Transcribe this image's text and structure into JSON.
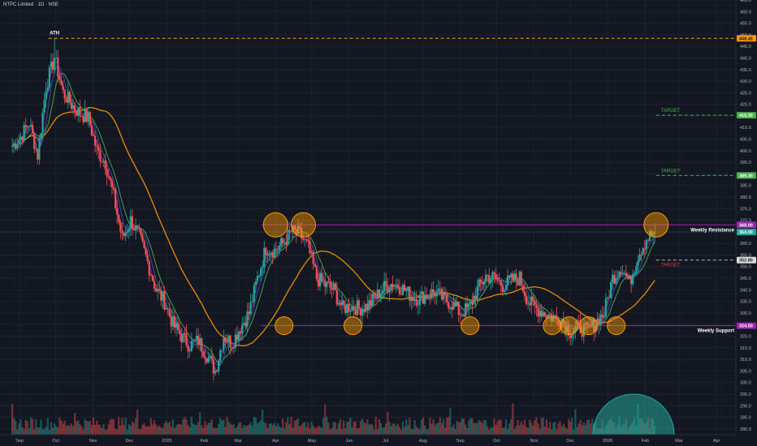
{
  "header": {
    "symbol_title": "NTPC Limited · 1D · NSE"
  },
  "chart_data": {
    "type": "candlestick",
    "y_axis": {
      "position": "right",
      "min": 277.5,
      "max": 465,
      "ticks": [
        280,
        285,
        290,
        295,
        300,
        305,
        310,
        315,
        320,
        325,
        330,
        335,
        340,
        345,
        350,
        355,
        360,
        365,
        370,
        375,
        380,
        385,
        390,
        395,
        400,
        405,
        410,
        415,
        420,
        425,
        430,
        435,
        440,
        445,
        450,
        455,
        460,
        465
      ]
    },
    "x_axis": {
      "ticks": [
        "Sep",
        "Oct",
        "Nov",
        "Dec",
        "2025",
        "Feb",
        "Mar",
        "Apr",
        "May",
        "Jun",
        "Jul",
        "Aug",
        "Sep",
        "Oct",
        "Nov",
        "Dec",
        "2026",
        "Feb",
        "Mar",
        "Apr"
      ]
    },
    "price_labels": [
      {
        "value": 448.45,
        "text": "448.45",
        "color": "#ff9800",
        "text_color": "#131722"
      },
      {
        "value": 415.3,
        "text": "415.30",
        "color": "#4caf50",
        "text_color": "#ffffff"
      },
      {
        "value": 389.3,
        "text": "389.30",
        "color": "#4caf50",
        "text_color": "#ffffff"
      },
      {
        "value": 368.0,
        "text": "368.00",
        "color": "#9c27b0",
        "text_color": "#ffffff"
      },
      {
        "value": 364.9,
        "text": "364.90",
        "color": "#26a69a",
        "text_color": "#ffffff"
      },
      {
        "value": 352.8,
        "text": "352.80",
        "color": "#dcdcdc",
        "text_color": "#131722"
      },
      {
        "value": 324.5,
        "text": "324.50",
        "color": "#9c27b0",
        "text_color": "#ffffff"
      }
    ],
    "annotations": [
      {
        "id": "ath",
        "text": "ATH",
        "color": "#ffffff"
      },
      {
        "id": "target1",
        "text": "TARGET",
        "color": "#4caf50"
      },
      {
        "id": "target2",
        "text": "TARGET",
        "color": "#4caf50"
      },
      {
        "id": "target3",
        "text": "TARGET",
        "color": "#f23645"
      },
      {
        "id": "weekly_resistance",
        "text": "Weekly Resistance",
        "color": "#ffffff"
      },
      {
        "id": "weekly_support",
        "text": "Weekly Support",
        "color": "#ffffff"
      }
    ],
    "levels": {
      "ath": 448.45,
      "weekly_resistance": 368.0,
      "weekly_support": 324.5,
      "target_upper": 415.3,
      "target_middle": 389.3,
      "target_lower": 352.8
    },
    "close_series": [
      {
        "d": "2024-08-26",
        "c": 402
      },
      {
        "d": "2024-09-02",
        "c": 406
      },
      {
        "d": "2024-09-09",
        "c": 412
      },
      {
        "d": "2024-09-16",
        "c": 398
      },
      {
        "d": "2024-09-23",
        "c": 428
      },
      {
        "d": "2024-09-30",
        "c": 440
      },
      {
        "d": "2024-10-07",
        "c": 425
      },
      {
        "d": "2024-10-14",
        "c": 420
      },
      {
        "d": "2024-10-21",
        "c": 416
      },
      {
        "d": "2024-10-28",
        "c": 414
      },
      {
        "d": "2024-11-04",
        "c": 400
      },
      {
        "d": "2024-11-11",
        "c": 395
      },
      {
        "d": "2024-11-18",
        "c": 380
      },
      {
        "d": "2024-11-25",
        "c": 362
      },
      {
        "d": "2024-12-02",
        "c": 370
      },
      {
        "d": "2024-12-09",
        "c": 363
      },
      {
        "d": "2024-12-16",
        "c": 352
      },
      {
        "d": "2024-12-23",
        "c": 340
      },
      {
        "d": "2024-12-30",
        "c": 335
      },
      {
        "d": "2025-01-06",
        "c": 325
      },
      {
        "d": "2025-01-13",
        "c": 320
      },
      {
        "d": "2025-01-20",
        "c": 316
      },
      {
        "d": "2025-01-27",
        "c": 318
      },
      {
        "d": "2025-02-03",
        "c": 312
      },
      {
        "d": "2025-02-10",
        "c": 305
      },
      {
        "d": "2025-02-17",
        "c": 320
      },
      {
        "d": "2025-02-24",
        "c": 317
      },
      {
        "d": "2025-03-03",
        "c": 324
      },
      {
        "d": "2025-03-10",
        "c": 330
      },
      {
        "d": "2025-03-17",
        "c": 345
      },
      {
        "d": "2025-03-24",
        "c": 358
      },
      {
        "d": "2025-03-31",
        "c": 357
      },
      {
        "d": "2025-04-07",
        "c": 360
      },
      {
        "d": "2025-04-14",
        "c": 365
      },
      {
        "d": "2025-04-21",
        "c": 364
      },
      {
        "d": "2025-04-28",
        "c": 358
      },
      {
        "d": "2025-05-05",
        "c": 345
      },
      {
        "d": "2025-05-12",
        "c": 342
      },
      {
        "d": "2025-05-19",
        "c": 340
      },
      {
        "d": "2025-05-26",
        "c": 332
      },
      {
        "d": "2025-06-02",
        "c": 333
      },
      {
        "d": "2025-06-09",
        "c": 332
      },
      {
        "d": "2025-06-16",
        "c": 333
      },
      {
        "d": "2025-06-23",
        "c": 337
      },
      {
        "d": "2025-06-30",
        "c": 341
      },
      {
        "d": "2025-07-07",
        "c": 343
      },
      {
        "d": "2025-07-14",
        "c": 341
      },
      {
        "d": "2025-07-21",
        "c": 338
      },
      {
        "d": "2025-07-28",
        "c": 336
      },
      {
        "d": "2025-08-04",
        "c": 338
      },
      {
        "d": "2025-08-11",
        "c": 339
      },
      {
        "d": "2025-08-18",
        "c": 336
      },
      {
        "d": "2025-08-25",
        "c": 334
      },
      {
        "d": "2025-09-01",
        "c": 330
      },
      {
        "d": "2025-09-08",
        "c": 332
      },
      {
        "d": "2025-09-15",
        "c": 340
      },
      {
        "d": "2025-09-22",
        "c": 346
      },
      {
        "d": "2025-09-29",
        "c": 345
      },
      {
        "d": "2025-10-06",
        "c": 342
      },
      {
        "d": "2025-10-13",
        "c": 344
      },
      {
        "d": "2025-10-20",
        "c": 345
      },
      {
        "d": "2025-10-27",
        "c": 335
      },
      {
        "d": "2025-11-03",
        "c": 332
      },
      {
        "d": "2025-11-10",
        "c": 330
      },
      {
        "d": "2025-11-17",
        "c": 328
      },
      {
        "d": "2025-11-24",
        "c": 327
      },
      {
        "d": "2025-12-01",
        "c": 322
      },
      {
        "d": "2025-12-08",
        "c": 324
      },
      {
        "d": "2025-12-15",
        "c": 322
      },
      {
        "d": "2025-12-22",
        "c": 326
      },
      {
        "d": "2025-12-29",
        "c": 330
      },
      {
        "d": "2026-01-05",
        "c": 345
      },
      {
        "d": "2026-01-12",
        "c": 350
      },
      {
        "d": "2026-01-19",
        "c": 343
      },
      {
        "d": "2026-01-26",
        "c": 355
      },
      {
        "d": "2026-02-02",
        "c": 362
      },
      {
        "d": "2026-02-09",
        "c": 364.9
      }
    ],
    "moving_averages": [
      {
        "name": "",
        "color": "#ff9800",
        "window": 40
      },
      {
        "name": "",
        "color": "#4caf50",
        "window": 10
      },
      {
        "name": "",
        "color": "#3f51b5",
        "window": 6
      },
      {
        "name": "",
        "color": "#9c27b0",
        "window": 3
      }
    ],
    "candle_colors": {
      "up": "#26a69a",
      "down": "#ef5350"
    },
    "grid": true
  }
}
